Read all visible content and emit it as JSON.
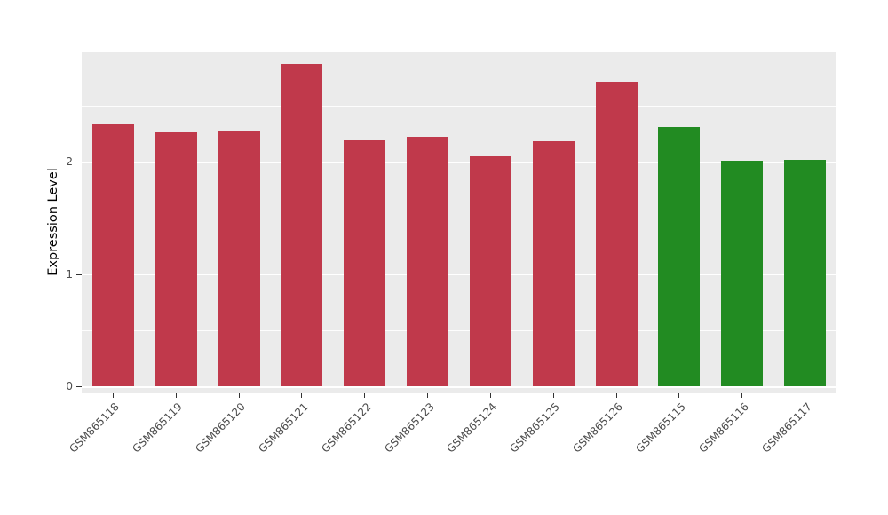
{
  "chart_data": {
    "type": "bar",
    "title": "",
    "xlabel": "",
    "ylabel": "Expression Level",
    "categories": [
      "GSM865118",
      "GSM865119",
      "GSM865120",
      "GSM865121",
      "GSM865122",
      "GSM865123",
      "GSM865124",
      "GSM865125",
      "GSM865126",
      "GSM865115",
      "GSM865116",
      "GSM865117"
    ],
    "values": [
      2.33,
      2.26,
      2.27,
      2.87,
      2.19,
      2.22,
      2.05,
      2.18,
      2.71,
      2.31,
      2.01,
      2.02
    ],
    "bar_colors": [
      "#C0394B",
      "#C0394B",
      "#C0394B",
      "#C0394B",
      "#C0394B",
      "#C0394B",
      "#C0394B",
      "#C0394B",
      "#C0394B",
      "#228B22",
      "#228B22",
      "#228B22"
    ],
    "ylim": [
      -0.06,
      2.98
    ],
    "yticks": [
      0,
      1,
      2
    ],
    "minor_gridlines": [
      0.5,
      1.5,
      2.5
    ],
    "legend_position": "none",
    "grid": "on",
    "panel_background": "#EBEBEB",
    "gridline_color": "#FFFFFF",
    "axis_text_color": "#4D4D4D",
    "tick_color": "#333333",
    "x_label_rotation_deg": 45
  }
}
